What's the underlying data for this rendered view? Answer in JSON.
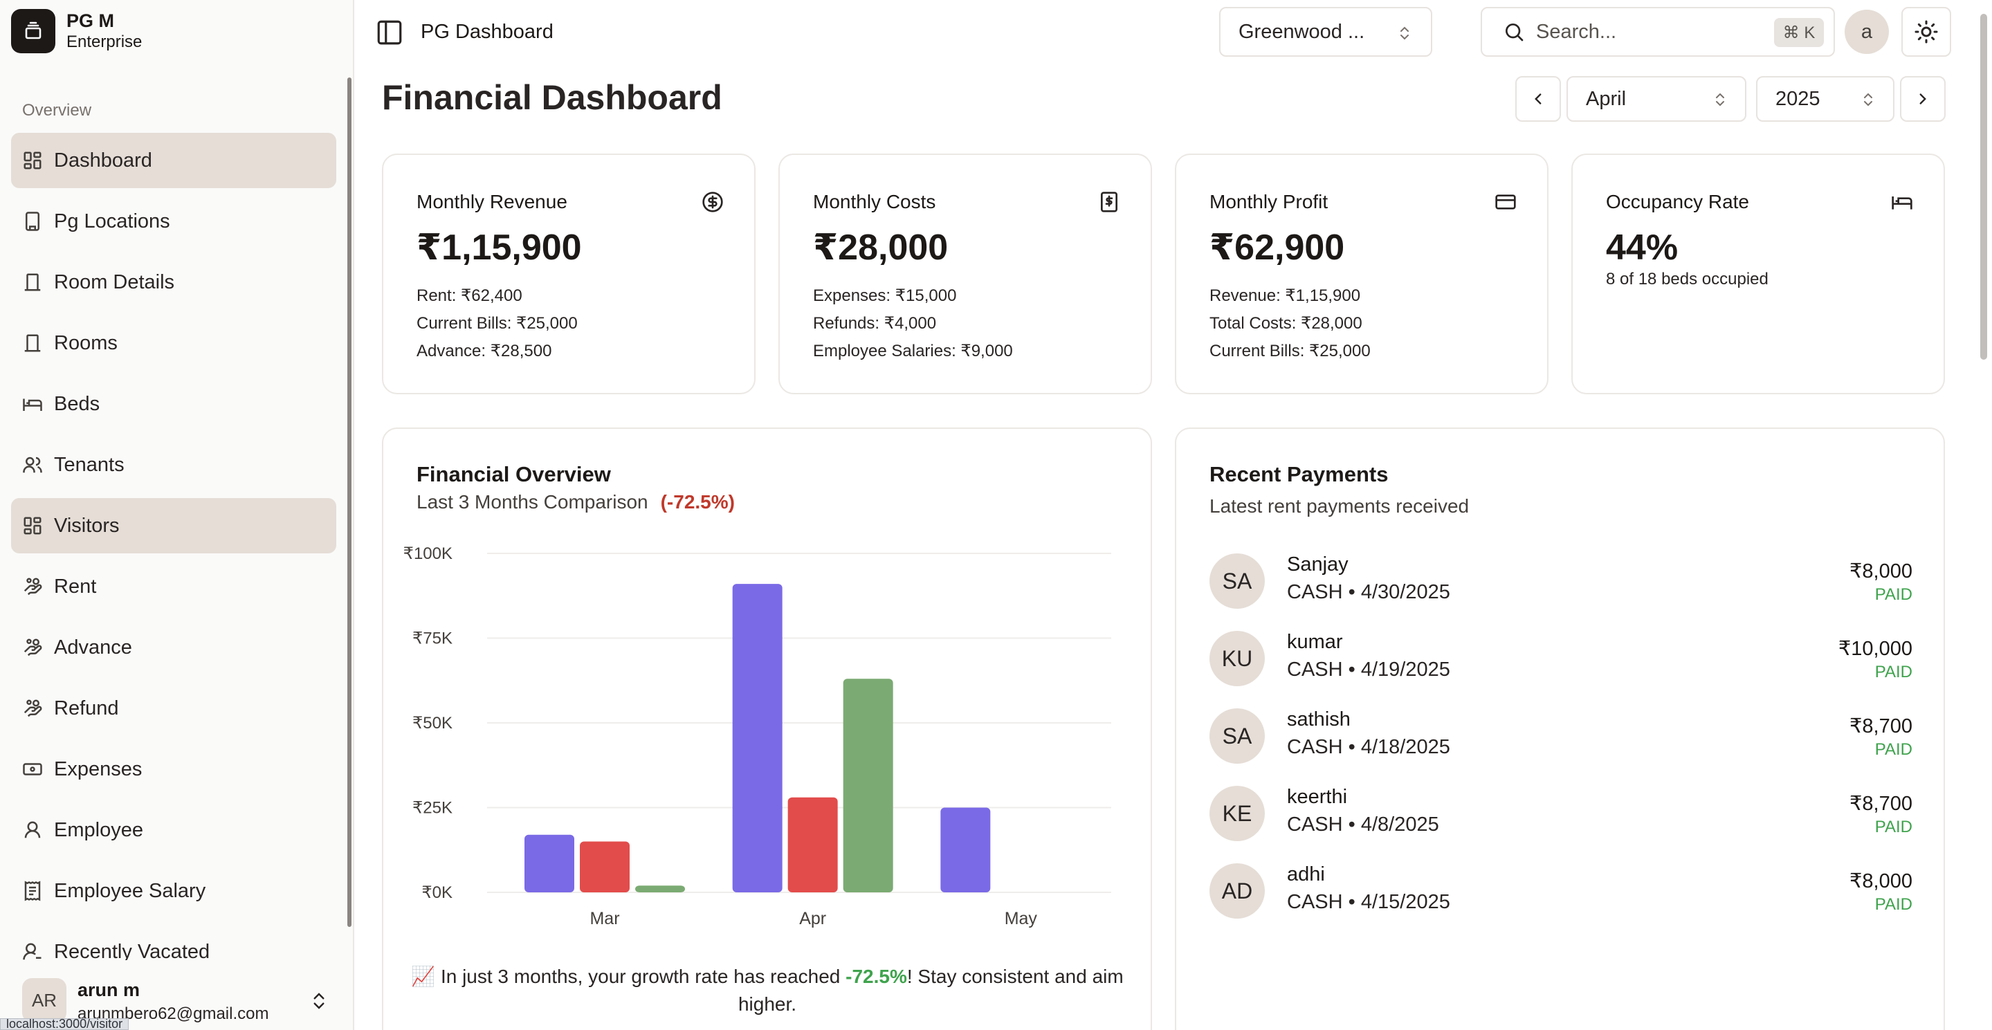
{
  "brand": {
    "name": "PG M",
    "subtitle": "Enterprise"
  },
  "sidebar": {
    "section_label": "Overview",
    "items": [
      {
        "label": "Dashboard",
        "icon": "dashboard-icon"
      },
      {
        "label": "Pg Locations",
        "icon": "building-icon"
      },
      {
        "label": "Room Details",
        "icon": "door-icon"
      },
      {
        "label": "Rooms",
        "icon": "door-icon"
      },
      {
        "label": "Beds",
        "icon": "bed-icon"
      },
      {
        "label": "Tenants",
        "icon": "users-icon"
      },
      {
        "label": "Visitors",
        "icon": "dashboard-icon"
      },
      {
        "label": "Rent",
        "icon": "hand-coins-icon"
      },
      {
        "label": "Advance",
        "icon": "hand-coins-icon"
      },
      {
        "label": "Refund",
        "icon": "hand-coins-icon"
      },
      {
        "label": "Expenses",
        "icon": "banknote-icon"
      },
      {
        "label": "Employee",
        "icon": "user-icon"
      },
      {
        "label": "Employee Salary",
        "icon": "receipt-icon"
      },
      {
        "label": "Recently Vacated",
        "icon": "user-minus-icon"
      }
    ],
    "user": {
      "initials": "AR",
      "name": "arun m",
      "email": "arunmbero62@gmail.com"
    },
    "status_url": "localhost:3000/visitor"
  },
  "header": {
    "breadcrumb": "PG Dashboard",
    "location_select": "Greenwood ...",
    "search_placeholder": "Search...",
    "search_shortcut": "⌘ K",
    "avatar_initial": "a"
  },
  "page": {
    "title": "Financial Dashboard",
    "month": "April",
    "year": "2025"
  },
  "stats": [
    {
      "label": "Monthly Revenue",
      "value": "₹1,15,900",
      "lines": [
        "Rent: ₹62,400",
        "Current Bills: ₹25,000",
        "Advance: ₹28,500"
      ],
      "icon": "dollar-circle-icon"
    },
    {
      "label": "Monthly Costs",
      "value": "₹28,000",
      "lines": [
        "Expenses: ₹15,000",
        "Refunds: ₹4,000",
        "Employee Salaries: ₹9,000"
      ],
      "icon": "receipt-dollar-icon"
    },
    {
      "label": "Monthly Profit",
      "value": "₹62,900",
      "lines": [
        "Revenue: ₹1,15,900",
        "Total Costs: ₹28,000",
        "Current Bills: ₹25,000"
      ],
      "icon": "credit-card-icon"
    },
    {
      "label": "Occupancy Rate",
      "value": "44%",
      "sub": "8 of 18 beds occupied",
      "icon": "bed-icon"
    }
  ],
  "financial_overview": {
    "title": "Financial Overview",
    "subtitle": "Last 3 Months Comparison",
    "change": "(-72.5%)",
    "growth_prefix": "📈 In just 3 months, your growth rate has reached ",
    "growth_value": "-72.5%",
    "growth_suffix": "! Stay consistent and aim higher."
  },
  "chart_data": {
    "type": "bar",
    "categories": [
      "Mar",
      "Apr",
      "May"
    ],
    "series": [
      {
        "values": [
          17000,
          91000,
          25000
        ],
        "color": "#7a6ae6"
      },
      {
        "values": [
          15000,
          28000,
          0
        ],
        "color": "#e24c4b"
      },
      {
        "values": [
          2000,
          63000,
          0
        ],
        "color": "#7bab72"
      }
    ],
    "ylim": [
      0,
      100000
    ],
    "yticks": [
      "₹0K",
      "₹25K",
      "₹50K",
      "₹75K",
      "₹100K"
    ],
    "grid": true
  },
  "recent_payments": {
    "title": "Recent Payments",
    "subtitle": "Latest rent payments received",
    "items": [
      {
        "initials": "SA",
        "name": "Sanjay",
        "meta": "CASH • 4/30/2025",
        "amount": "₹8,000",
        "status": "PAID"
      },
      {
        "initials": "KU",
        "name": "kumar",
        "meta": "CASH • 4/19/2025",
        "amount": "₹10,000",
        "status": "PAID"
      },
      {
        "initials": "SA",
        "name": "sathish",
        "meta": "CASH • 4/18/2025",
        "amount": "₹8,700",
        "status": "PAID"
      },
      {
        "initials": "KE",
        "name": "keerthi",
        "meta": "CASH • 4/8/2025",
        "amount": "₹8,700",
        "status": "PAID"
      },
      {
        "initials": "AD",
        "name": "adhi",
        "meta": "CASH • 4/15/2025",
        "amount": "₹8,000",
        "status": "PAID"
      }
    ]
  }
}
